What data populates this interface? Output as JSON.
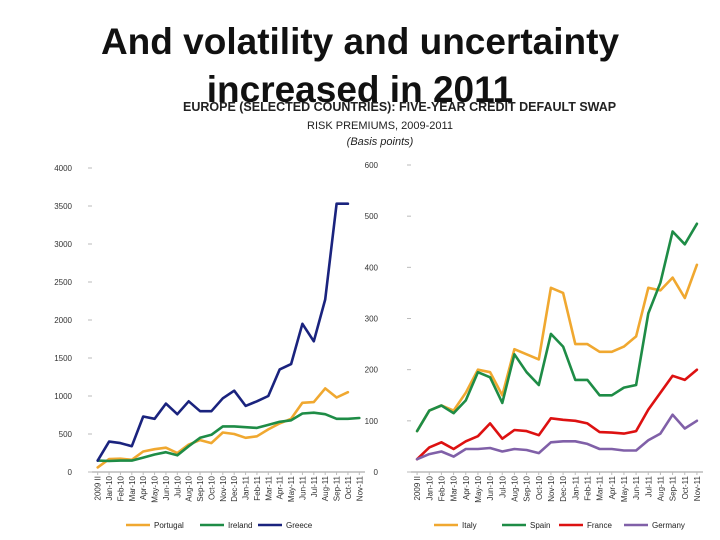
{
  "header": {
    "title_line1": "And volatility and uncertainty",
    "title_line2": "increased in 2011",
    "subtitle": "EUROPE (SELECTED COUNTRIES): FIVE-YEAR CREDIT DEFAULT SWAP",
    "subtitle2": "RISK PREMIUMS, 2009-2011",
    "subtitle3": "(Basis points)"
  },
  "chart_data": [
    {
      "type": "line",
      "categories": [
        "2009 II",
        "Jan-10",
        "Feb-10",
        "Mar-10",
        "Apr-10",
        "May-10",
        "Jun-10",
        "Jul-10",
        "Aug-10",
        "Sep-10",
        "Oct-10",
        "Nov-10",
        "Dec-10",
        "Jan-11",
        "Feb-11",
        "Mar-11",
        "Apr-11",
        "May-11",
        "Jun-11",
        "Jul-11",
        "Aug-11",
        "Sep-11",
        "Oct-11",
        "Nov-11"
      ],
      "ylim": [
        0,
        4000
      ],
      "yticks": [
        0,
        500,
        1000,
        1500,
        2000,
        2500,
        3000,
        3500,
        4000
      ],
      "series": [
        {
          "name": "Portugal",
          "color": "#F0A830",
          "values": [
            60,
            170,
            175,
            160,
            270,
            300,
            320,
            250,
            360,
            420,
            380,
            520,
            500,
            450,
            470,
            560,
            640,
            700,
            910,
            920,
            1100,
            980,
            1050,
            null
          ]
        },
        {
          "name": "Ireland",
          "color": "#1E8C46",
          "values": [
            150,
            145,
            150,
            150,
            190,
            230,
            260,
            220,
            340,
            450,
            490,
            600,
            600,
            590,
            580,
            620,
            660,
            680,
            770,
            780,
            760,
            700,
            700,
            710
          ]
        },
        {
          "name": "Greece",
          "color": "#1A237E",
          "values": [
            150,
            400,
            380,
            340,
            730,
            700,
            900,
            760,
            930,
            800,
            800,
            970,
            1070,
            870,
            930,
            1000,
            1350,
            1420,
            1950,
            1720,
            2270,
            3530,
            3530,
            null
          ]
        }
      ]
    },
    {
      "type": "line",
      "categories": [
        "2009 II",
        "Jan-10",
        "Feb-10",
        "Mar-10",
        "Apr-10",
        "May-10",
        "Jun-10",
        "Jul-10",
        "Aug-10",
        "Sep-10",
        "Oct-10",
        "Nov-10",
        "Dec-10",
        "Jan-11",
        "Feb-11",
        "Mar-11",
        "Apr-11",
        "May-11",
        "Jun-11",
        "Jul-11",
        "Aug-11",
        "Sep-11",
        "Oct-11",
        "Nov-11"
      ],
      "ylim": [
        0,
        600
      ],
      "yticks": [
        0,
        100,
        200,
        300,
        400,
        500,
        600
      ],
      "series": [
        {
          "name": "Italy",
          "color": "#F0A830",
          "values": [
            80,
            120,
            130,
            120,
            155,
            200,
            195,
            150,
            240,
            230,
            220,
            360,
            350,
            250,
            250,
            235,
            235,
            245,
            265,
            360,
            355,
            380,
            340,
            405
          ]
        },
        {
          "name": "Spain",
          "color": "#1E8C46",
          "values": [
            80,
            120,
            130,
            115,
            140,
            195,
            185,
            135,
            230,
            195,
            170,
            270,
            245,
            180,
            180,
            150,
            150,
            165,
            170,
            310,
            370,
            470,
            445,
            485
          ]
        },
        {
          "name": "France",
          "color": "#DD1111",
          "values": [
            25,
            48,
            58,
            45,
            60,
            70,
            95,
            65,
            82,
            80,
            72,
            105,
            102,
            100,
            95,
            78,
            77,
            75,
            80,
            122,
            155,
            188,
            180,
            200
          ]
        },
        {
          "name": "Germany",
          "color": "#8060A8",
          "values": [
            25,
            35,
            40,
            30,
            45,
            45,
            47,
            40,
            45,
            43,
            37,
            58,
            60,
            60,
            55,
            45,
            45,
            42,
            42,
            62,
            75,
            112,
            85,
            100
          ]
        }
      ]
    }
  ]
}
